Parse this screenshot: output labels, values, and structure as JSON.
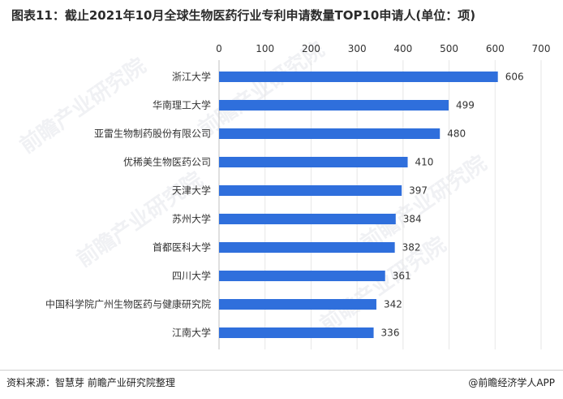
{
  "title": "图表11：截止2021年10月全球生物医药行业专利申请数量TOP10申请人(单位：项)",
  "source": "资料来源：智慧芽 前瞻产业研究院整理",
  "brand": "@前瞻经济学人APP",
  "watermarks": [
    "前瞻产业研究院",
    "前瞻产业研究院",
    "前瞻产业研究院",
    "前瞻产业研究院",
    "前瞻产业研究院"
  ],
  "colors": {
    "bar": "#2f6fdc",
    "grid": "#e6e6e6",
    "text": "#333333"
  },
  "chart_data": {
    "type": "bar",
    "orientation": "horizontal",
    "categories": [
      "浙江大学",
      "华南理工大学",
      "亚雷生物制药股份有限公司",
      "优稀美生物医药公司",
      "天津大学",
      "苏州大学",
      "首都医科大学",
      "四川大学",
      "中国科学院广州生物医药与健康研究院",
      "江南大学"
    ],
    "values": [
      606,
      499,
      480,
      410,
      397,
      384,
      382,
      361,
      342,
      336
    ],
    "xlim": [
      0,
      700
    ],
    "xticks": [
      "0",
      "100",
      "200",
      "300",
      "400",
      "500",
      "600",
      "700"
    ],
    "axis_position": "top",
    "grid": true
  }
}
